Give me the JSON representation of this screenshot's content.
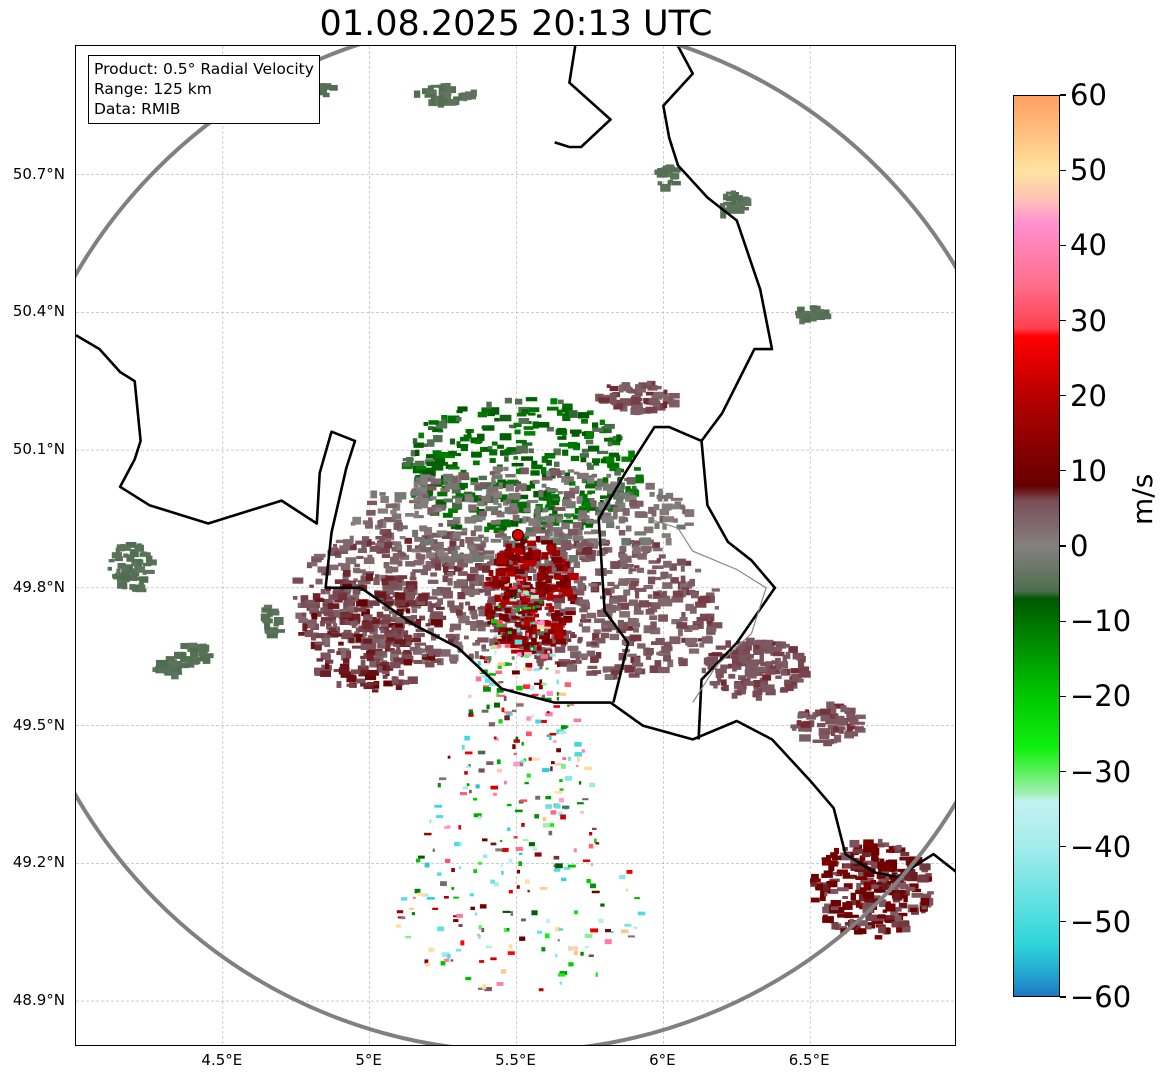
{
  "title": "01.08.2025 20:13 UTC",
  "info_box": {
    "product": "Product: 0.5° Radial Velocity",
    "range": "Range: 125 km",
    "data": "Data: RMIB"
  },
  "map": {
    "lon_range": [
      4.0,
      7.0
    ],
    "lat_range": [
      48.8,
      50.98
    ],
    "lat_ticks": [
      "50.7°N",
      "50.4°N",
      "50.1°N",
      "49.8°N",
      "49.5°N",
      "49.2°N",
      "48.9°N"
    ],
    "lat_values": [
      50.7,
      50.4,
      50.1,
      49.8,
      49.5,
      49.2,
      48.9
    ],
    "lon_ticks": [
      "4.5°E",
      "5°E",
      "5.5°E",
      "6°E",
      "6.5°E"
    ],
    "lon_values": [
      4.5,
      5.0,
      5.5,
      6.0,
      6.5
    ],
    "radar_site": {
      "lon": 5.505,
      "lat": 49.915
    },
    "range_km": 125,
    "colors": {
      "range_ring": "#808080",
      "border": "#000000",
      "admin_border": "#888888",
      "grid": "#b0b0b0",
      "radar_marker": "#e00000"
    }
  },
  "colorbar": {
    "unit": "m/s",
    "min": -60,
    "max": 60,
    "tick_labels": [
      "60",
      "50",
      "40",
      "30",
      "20",
      "10",
      "0",
      "−10",
      "−20",
      "−30",
      "−40",
      "−50",
      "−60"
    ],
    "tick_values": [
      60,
      50,
      40,
      30,
      20,
      10,
      0,
      -10,
      -20,
      -30,
      -40,
      -50,
      -60
    ],
    "stops": [
      {
        "v": -60,
        "c": "#1f77c4"
      },
      {
        "v": -57,
        "c": "#23a7d0"
      },
      {
        "v": -53,
        "c": "#2fd6da"
      },
      {
        "v": -46,
        "c": "#6fe3e3"
      },
      {
        "v": -40,
        "c": "#a5ecec"
      },
      {
        "v": -34,
        "c": "#c3f2f0"
      },
      {
        "v": -33,
        "c": "#a0f0b4"
      },
      {
        "v": -30,
        "c": "#5af05a"
      },
      {
        "v": -27,
        "c": "#10f010"
      },
      {
        "v": -20,
        "c": "#00c800"
      },
      {
        "v": -13,
        "c": "#008c00"
      },
      {
        "v": -7,
        "c": "#005800"
      },
      {
        "v": -6,
        "c": "#4e6e4e"
      },
      {
        "v": 0,
        "c": "#858081"
      },
      {
        "v": 6,
        "c": "#7a4e58"
      },
      {
        "v": 8,
        "c": "#650000"
      },
      {
        "v": 20,
        "c": "#b80000"
      },
      {
        "v": 28,
        "c": "#ff0000"
      },
      {
        "v": 29,
        "c": "#ff4050"
      },
      {
        "v": 35,
        "c": "#ff6f8c"
      },
      {
        "v": 43,
        "c": "#ff90d0"
      },
      {
        "v": 46,
        "c": "#ffc0b8"
      },
      {
        "v": 50,
        "c": "#ffe3a0"
      },
      {
        "v": 55,
        "c": "#ffc080"
      },
      {
        "v": 60,
        "c": "#ffa060"
      }
    ]
  }
}
